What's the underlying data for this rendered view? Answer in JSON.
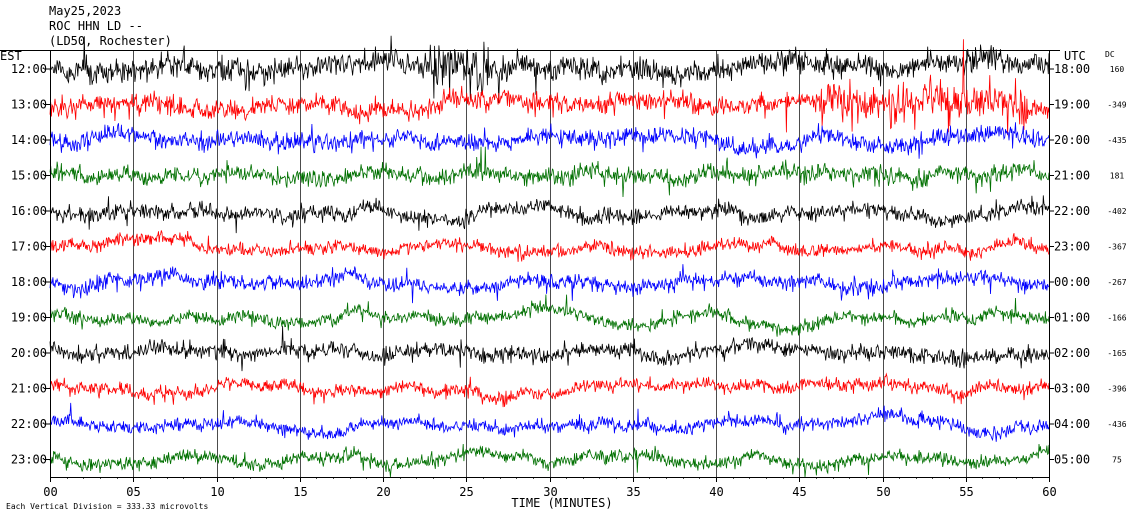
{
  "chart_data": {
    "type": "line",
    "title": "May25,2023",
    "station_line": "ROC HHN LD --",
    "location_line": "(LD50, Rochester)",
    "left_axis_label": "EST",
    "right_axis_label": "UTC",
    "dc_label": "DC",
    "xlabel": "TIME (MINUTES)",
    "xlim": [
      0,
      60
    ],
    "x_ticks": [
      "00",
      "05",
      "10",
      "15",
      "20",
      "25",
      "30",
      "35",
      "40",
      "45",
      "50",
      "55",
      "60"
    ],
    "scale_note": "Each Vertical Division =  333.33 microvolts",
    "colors": [
      "#000000",
      "#ff0000",
      "#0000ff",
      "#007000"
    ],
    "rows": [
      {
        "est": "12:00",
        "utc": "18:00",
        "dc": "160"
      },
      {
        "est": "13:00",
        "utc": "19:00",
        "dc": "-349"
      },
      {
        "est": "14:00",
        "utc": "20:00",
        "dc": "-435"
      },
      {
        "est": "15:00",
        "utc": "21:00",
        "dc": "181"
      },
      {
        "est": "16:00",
        "utc": "22:00",
        "dc": "-402"
      },
      {
        "est": "17:00",
        "utc": "23:00",
        "dc": "-367"
      },
      {
        "est": "18:00",
        "utc": "00:00",
        "dc": "-267"
      },
      {
        "est": "19:00",
        "utc": "01:00",
        "dc": "-166"
      },
      {
        "est": "20:00",
        "utc": "02:00",
        "dc": "-165"
      },
      {
        "est": "21:00",
        "utc": "03:00",
        "dc": "-396"
      },
      {
        "est": "22:00",
        "utc": "04:00",
        "dc": "-436"
      },
      {
        "est": "23:00",
        "utc": "05:00",
        "dc": "75"
      }
    ]
  }
}
